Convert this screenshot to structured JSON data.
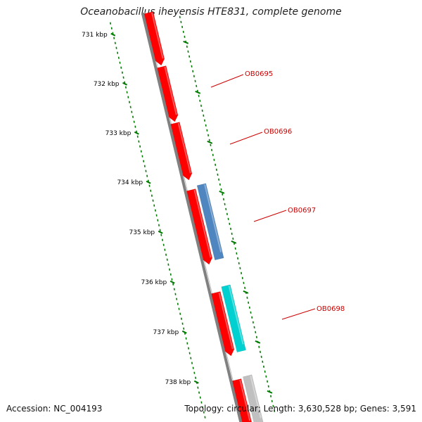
{
  "header": {
    "title": "Oceanobacillus iheyensis HTE831, complete genome"
  },
  "footer": {
    "accession": "Accession: NC_004193",
    "stats": "Topology: circular; Length: 3,630,528 bp; Genes: 3,591"
  },
  "colors": {
    "forward_gene": "#ff0000",
    "reverse_gene_blue": "#4f86c0",
    "reverse_gene_cyan": "#00d0d0",
    "reverse_gene_gray": "#c0c0c0",
    "backbone": "#808080",
    "ticks": "#007a00",
    "gene_label": "#cc0000"
  },
  "scale": {
    "unit": "kbp",
    "tick_labels": [
      "731 kbp",
      "732 kbp",
      "733 kbp",
      "734 kbp",
      "735 kbp",
      "736 kbp",
      "737 kbp",
      "738 kbp"
    ]
  },
  "genes": [
    {
      "label": "OB0695",
      "strand": "forward"
    },
    {
      "label": "OB0696",
      "strand": "forward"
    },
    {
      "label": "OB0697",
      "strand": "reverse"
    },
    {
      "label": "OB0698",
      "strand": "reverse"
    }
  ]
}
